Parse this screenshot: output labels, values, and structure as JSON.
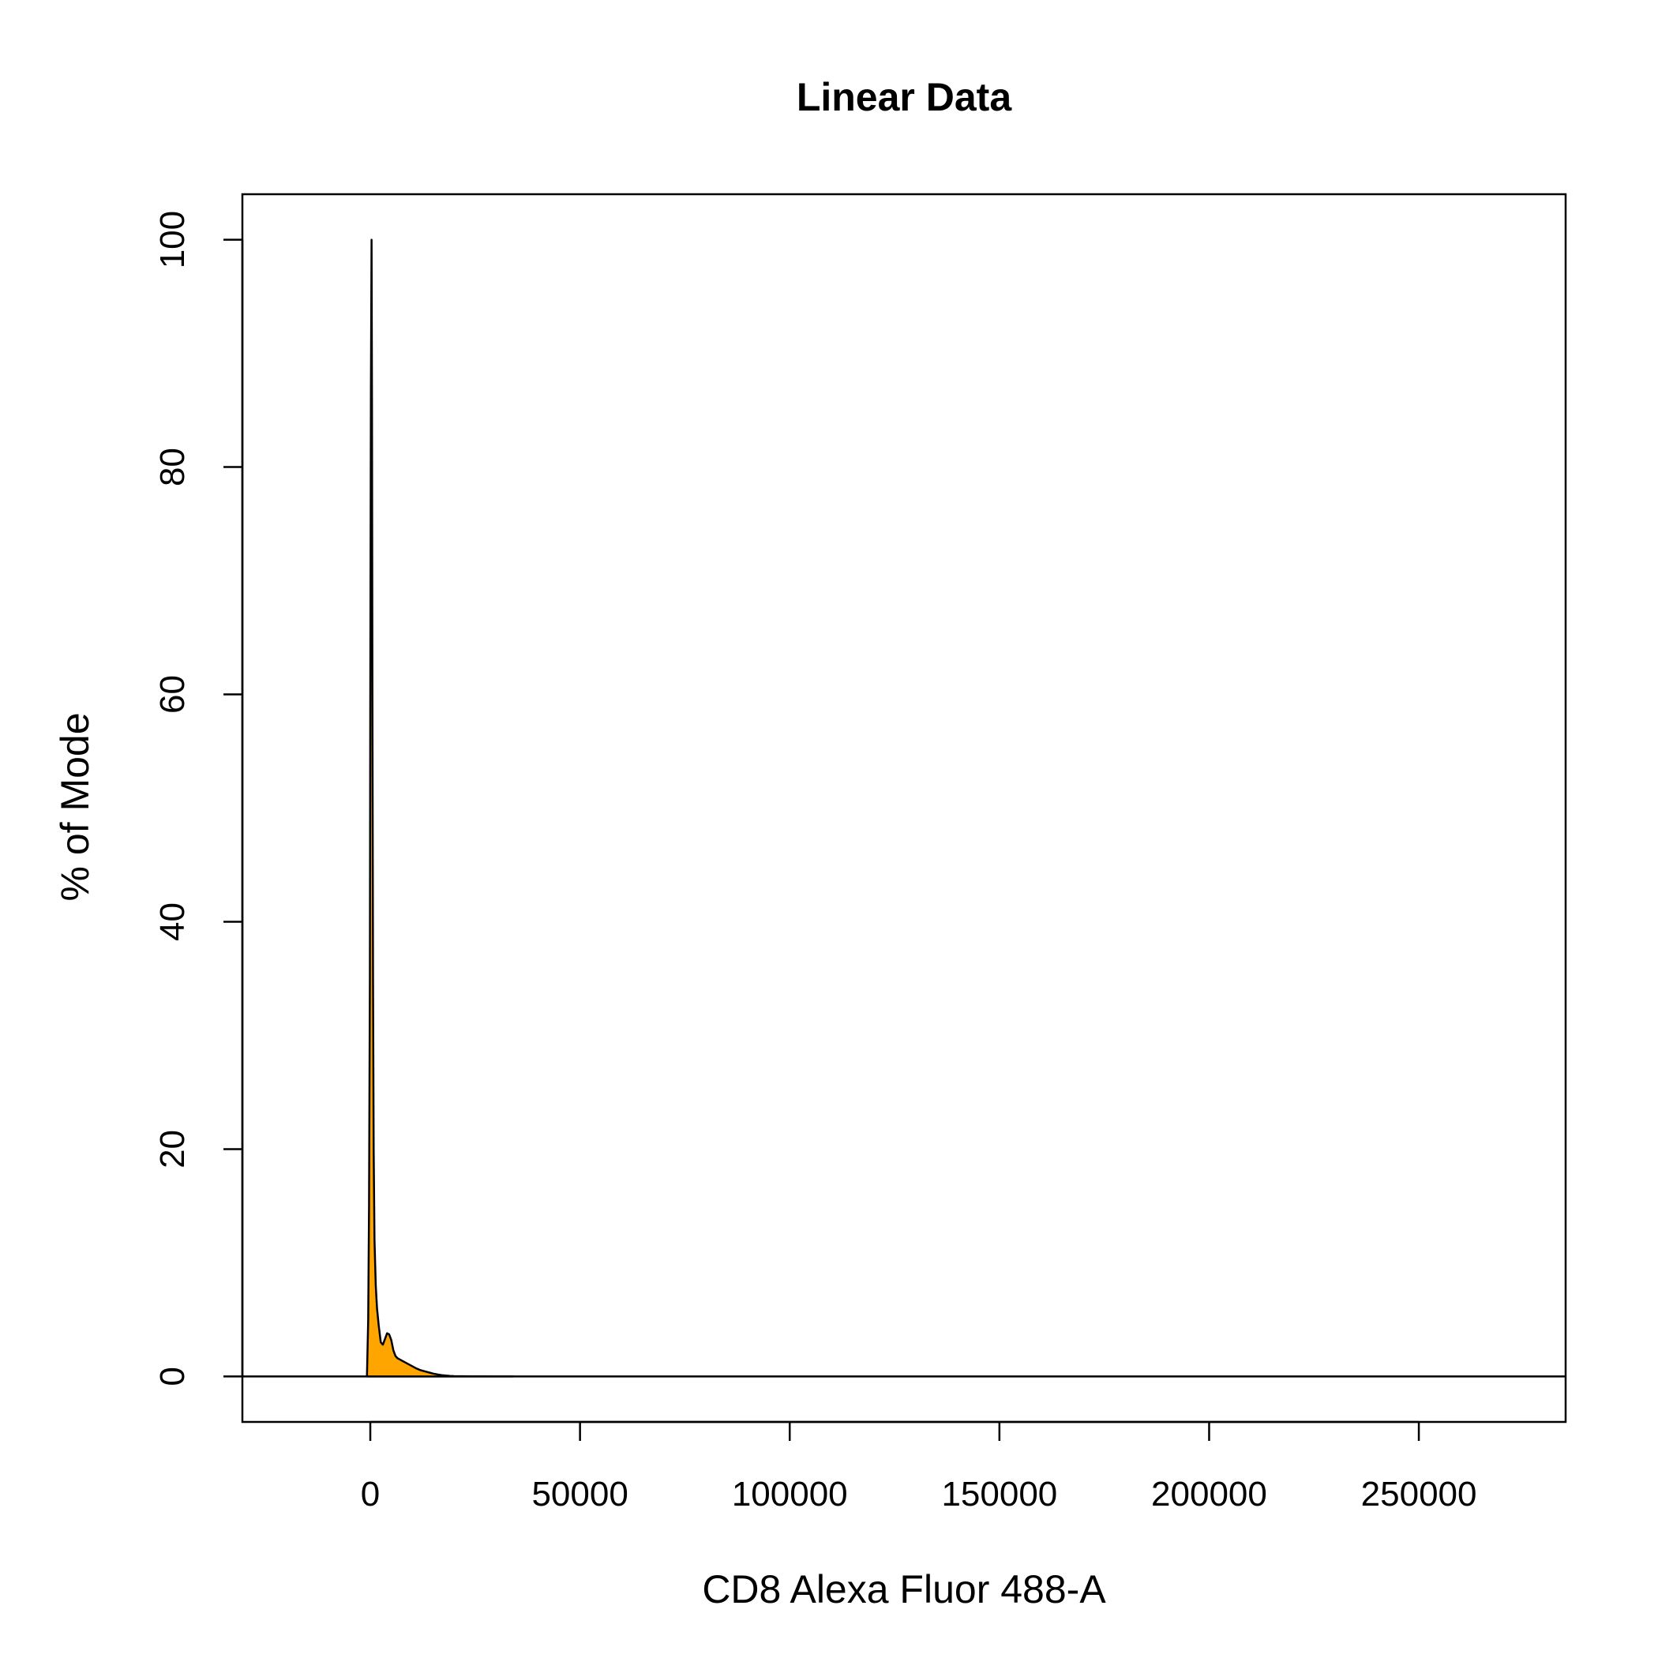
{
  "chart_data": {
    "type": "area",
    "title": "Linear Data",
    "xlabel": "CD8 Alexa Fluor 488-A",
    "ylabel": "% of Mode",
    "xlim": [
      -30500,
      285000
    ],
    "ylim": [
      -4,
      104
    ],
    "x_ticks": [
      0,
      50000,
      100000,
      150000,
      200000,
      250000
    ],
    "x_tick_labels": [
      "0",
      "50000",
      "100000",
      "150000",
      "200000",
      "250000"
    ],
    "y_ticks": [
      0,
      20,
      40,
      60,
      80,
      100
    ],
    "y_tick_labels": [
      "0",
      "20",
      "40",
      "60",
      "80",
      "100"
    ],
    "grid": false,
    "fill_color": "#FFA500",
    "line_color": "#000000",
    "series": [
      {
        "x": [
          -800,
          -500,
          -300,
          -100,
          0,
          150,
          300,
          400,
          500,
          650,
          800,
          1000,
          1300,
          1600,
          2000,
          2500,
          3000,
          3500,
          4000,
          4500,
          5000,
          5500,
          6000,
          6500,
          7000,
          8000,
          9000,
          10000,
          11000,
          12000,
          13000,
          14000,
          15000,
          16000,
          17000,
          18000,
          19000,
          20000,
          22000,
          24000,
          26000,
          30000,
          34000
        ],
        "y": [
          0,
          5,
          15,
          35,
          60,
          87,
          100,
          85,
          60,
          35,
          20,
          12,
          8,
          6,
          4.5,
          3,
          2.8,
          3.3,
          3.8,
          3.7,
          3.2,
          2.3,
          1.8,
          1.6,
          1.5,
          1.3,
          1.1,
          0.9,
          0.7,
          0.55,
          0.45,
          0.35,
          0.25,
          0.18,
          0.12,
          0.08,
          0.05,
          0.03,
          0.02,
          0.01,
          0.01,
          0.005,
          0
        ]
      }
    ]
  }
}
